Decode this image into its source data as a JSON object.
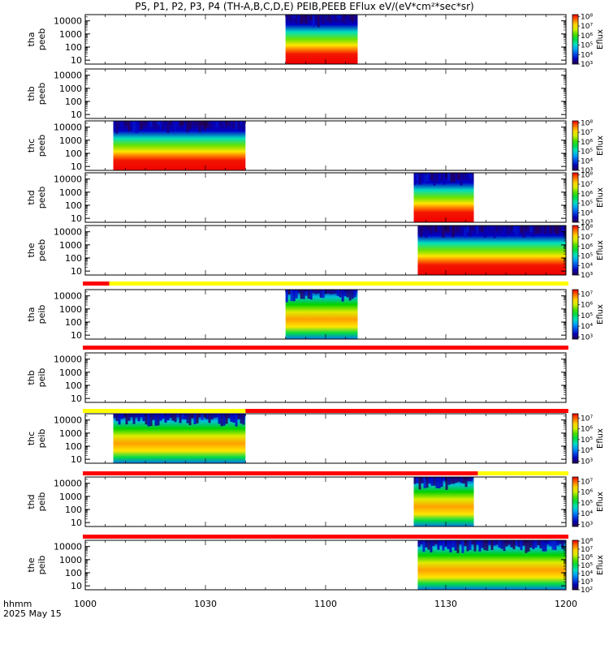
{
  "title": "P5, P1, P2, P3, P4 (TH-A,B,C,D,E) PEIB,PEEB EFlux eV/(eV*cm²*sec*sr)",
  "time_axis": {
    "ticks": [
      "1000",
      "1030",
      "1100",
      "1130",
      "1200"
    ],
    "format_label": "hhmm",
    "date_label": "2025 May 15"
  },
  "colorbar_label": "Eflux",
  "colors": {
    "mode_red": "#ff0000",
    "mode_yellow": "#ffff00",
    "black": "#000000"
  },
  "chart_data": {
    "type": "heatmap",
    "x_unit": "time (hhmm UT)",
    "x_range": [
      "1000",
      "1200"
    ],
    "y_scale": "log",
    "panels": [
      {
        "probe": "tha",
        "species": "peeb",
        "yticks": [
          "10",
          "100",
          "1000",
          "10000"
        ],
        "data_start": "1050",
        "data_end": "1108",
        "cbar_ticks": [
          "10³",
          "10⁴",
          "10⁵",
          "10⁶",
          "10⁷",
          "10⁸"
        ],
        "cbar_min_exp": 3,
        "cbar_max_exp": 8.2,
        "style": "peeb"
      },
      {
        "probe": "thb",
        "species": "peeb",
        "yticks": [
          "10",
          "100",
          "1000",
          "10000"
        ],
        "data_start": "",
        "data_end": "",
        "cbar_ticks": [],
        "cbar_min_exp": 0,
        "cbar_max_exp": 0,
        "style": "none"
      },
      {
        "probe": "thc",
        "species": "peeb",
        "yticks": [
          "10",
          "100",
          "1000",
          "10000"
        ],
        "data_start": "1007",
        "data_end": "1040",
        "cbar_ticks": [
          "10³",
          "10⁴",
          "10⁵",
          "10⁶",
          "10⁷",
          "10⁸"
        ],
        "cbar_min_exp": 3,
        "cbar_max_exp": 8.2,
        "style": "peeb"
      },
      {
        "probe": "thd",
        "species": "peeb",
        "yticks": [
          "10",
          "100",
          "1000",
          "10000"
        ],
        "data_start": "1122",
        "data_end": "1137",
        "cbar_ticks": [
          "10³",
          "10⁴",
          "10⁵",
          "10⁶",
          "10⁷",
          "10⁸"
        ],
        "cbar_min_exp": 3,
        "cbar_max_exp": 8.2,
        "style": "peeb"
      },
      {
        "probe": "the",
        "species": "peeb",
        "yticks": [
          "10",
          "100",
          "1000",
          "10000"
        ],
        "data_start": "1123",
        "data_end": "1200",
        "cbar_ticks": [
          "10³",
          "10⁴",
          "10⁵",
          "10⁶",
          "10⁷",
          "10⁸"
        ],
        "cbar_min_exp": 3,
        "cbar_max_exp": 8.2,
        "style": "peeb"
      },
      {
        "probe": "tha",
        "species": "peib",
        "yticks": [
          "10",
          "100",
          "1000",
          "10000"
        ],
        "data_start": "1050",
        "data_end": "1108",
        "cbar_ticks": [
          "10³",
          "10⁴",
          "10⁵",
          "10⁶",
          "10⁷"
        ],
        "cbar_min_exp": 2.8,
        "cbar_max_exp": 7.4,
        "style": "peib"
      },
      {
        "probe": "thb",
        "species": "peib",
        "yticks": [
          "10",
          "100",
          "1000",
          "10000"
        ],
        "data_start": "",
        "data_end": "",
        "cbar_ticks": [],
        "cbar_min_exp": 0,
        "cbar_max_exp": 0,
        "style": "none"
      },
      {
        "probe": "thc",
        "species": "peib",
        "yticks": [
          "10",
          "100",
          "1000",
          "10000"
        ],
        "data_start": "1007",
        "data_end": "1040",
        "cbar_ticks": [
          "10³",
          "10⁴",
          "10⁵",
          "10⁶",
          "10⁷"
        ],
        "cbar_min_exp": 2.8,
        "cbar_max_exp": 7.4,
        "style": "peib"
      },
      {
        "probe": "thd",
        "species": "peib",
        "yticks": [
          "10",
          "100",
          "1000",
          "10000"
        ],
        "data_start": "1122",
        "data_end": "1137",
        "cbar_ticks": [
          "10³",
          "10⁴",
          "10⁵",
          "10⁶",
          "10⁷"
        ],
        "cbar_min_exp": 2.8,
        "cbar_max_exp": 7.4,
        "style": "peib"
      },
      {
        "probe": "the",
        "species": "peib",
        "yticks": [
          "10",
          "100",
          "1000",
          "10000"
        ],
        "data_start": "1123",
        "data_end": "1200",
        "cbar_ticks": [
          "10²",
          "10³",
          "10⁴",
          "10⁵",
          "10⁶",
          "10⁷",
          "10⁸"
        ],
        "cbar_min_exp": 2,
        "cbar_max_exp": 8.1,
        "style": "peib"
      }
    ],
    "mode_bars": [
      {
        "segments": [
          {
            "start": "1000",
            "end": "1006",
            "color": "red"
          },
          {
            "start": "1006",
            "end": "1200",
            "color": "yellow"
          }
        ]
      },
      {
        "segments": [
          {
            "start": "1000",
            "end": "1200",
            "color": "red"
          }
        ]
      },
      {
        "segments": [
          {
            "start": "1000",
            "end": "1040",
            "color": "yellow"
          },
          {
            "start": "1040",
            "end": "1200",
            "color": "red"
          }
        ]
      },
      {
        "segments": [
          {
            "start": "1000",
            "end": "1138",
            "color": "red"
          },
          {
            "start": "1138",
            "end": "1200",
            "color": "yellow"
          }
        ]
      },
      {
        "segments": [
          {
            "start": "1000",
            "end": "1200",
            "color": "red"
          }
        ]
      }
    ]
  }
}
